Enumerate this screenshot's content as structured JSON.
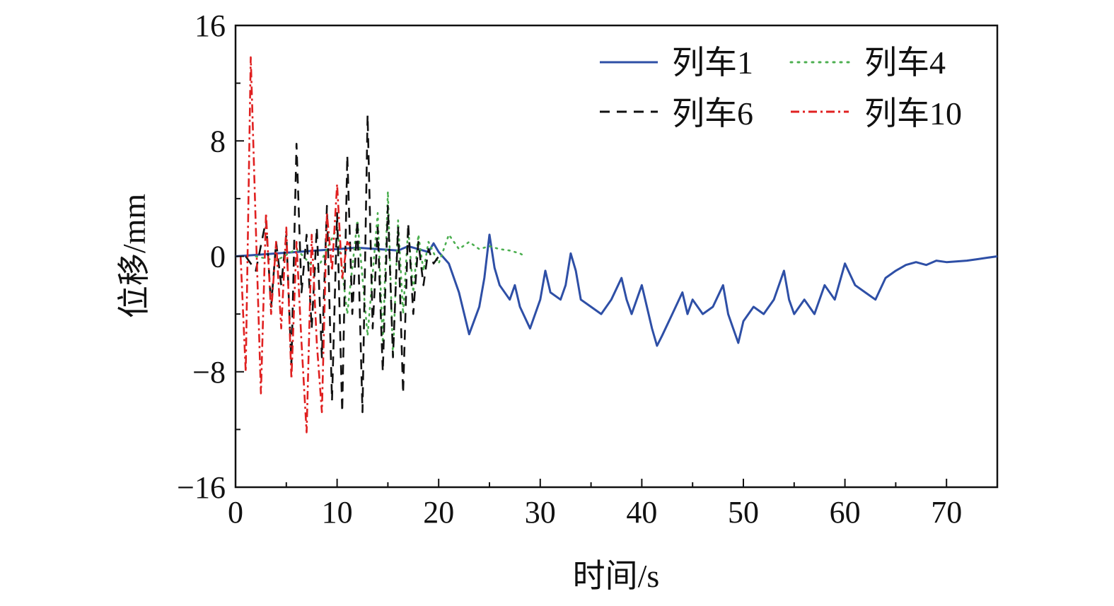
{
  "chart_data": {
    "type": "line",
    "title": "",
    "xlabel": "时间/s",
    "ylabel": "位移/mm",
    "xlim": [
      0,
      75
    ],
    "ylim": [
      -16,
      16
    ],
    "x_ticks": [
      0,
      10,
      20,
      30,
      40,
      50,
      60,
      70
    ],
    "y_ticks": [
      -16,
      -8,
      0,
      8,
      16
    ],
    "y_tick_labels": [
      "−16",
      "−8",
      "0",
      "8",
      "16"
    ],
    "grid": false,
    "legend_position": "top-right",
    "series": [
      {
        "name": "列车1",
        "color": "#2e4fa6",
        "dash": "solid",
        "points": [
          [
            0,
            0
          ],
          [
            2,
            0.1
          ],
          [
            4,
            0.2
          ],
          [
            6,
            0.3
          ],
          [
            8,
            0.4
          ],
          [
            10,
            0.5
          ],
          [
            12,
            0.6
          ],
          [
            14,
            0.5
          ],
          [
            16,
            0.4
          ],
          [
            17,
            0.7
          ],
          [
            18,
            0.5
          ],
          [
            19,
            0.3
          ],
          [
            19.5,
            0.9
          ],
          [
            20,
            0.3
          ],
          [
            21,
            -0.5
          ],
          [
            22,
            -2.5
          ],
          [
            23,
            -5.4
          ],
          [
            24,
            -3.5
          ],
          [
            24.5,
            -1.5
          ],
          [
            25,
            1.5
          ],
          [
            25.5,
            -0.8
          ],
          [
            26,
            -2
          ],
          [
            27,
            -3
          ],
          [
            27.5,
            -2
          ],
          [
            28,
            -3.5
          ],
          [
            29,
            -5
          ],
          [
            30,
            -3
          ],
          [
            30.5,
            -1
          ],
          [
            31,
            -2.5
          ],
          [
            32,
            -3
          ],
          [
            32.5,
            -2
          ],
          [
            33,
            0.2
          ],
          [
            33.5,
            -1
          ],
          [
            34,
            -3
          ],
          [
            35,
            -3.5
          ],
          [
            36,
            -4
          ],
          [
            37,
            -3
          ],
          [
            38,
            -1.5
          ],
          [
            38.5,
            -3
          ],
          [
            39,
            -4
          ],
          [
            40,
            -2
          ],
          [
            40.5,
            -3.5
          ],
          [
            41,
            -5
          ],
          [
            41.5,
            -6.2
          ],
          [
            42,
            -5.5
          ],
          [
            43,
            -4
          ],
          [
            44,
            -2.5
          ],
          [
            44.5,
            -4
          ],
          [
            45,
            -3
          ],
          [
            46,
            -4
          ],
          [
            47,
            -3.5
          ],
          [
            48,
            -2
          ],
          [
            48.5,
            -4
          ],
          [
            49,
            -5
          ],
          [
            49.5,
            -6
          ],
          [
            50,
            -4.5
          ],
          [
            51,
            -3.5
          ],
          [
            52,
            -4
          ],
          [
            53,
            -3
          ],
          [
            54,
            -1
          ],
          [
            54.5,
            -3
          ],
          [
            55,
            -4
          ],
          [
            56,
            -3
          ],
          [
            57,
            -4
          ],
          [
            58,
            -2
          ],
          [
            59,
            -3
          ],
          [
            60,
            -0.5
          ],
          [
            61,
            -2
          ],
          [
            62,
            -2.5
          ],
          [
            63,
            -3
          ],
          [
            64,
            -1.5
          ],
          [
            65,
            -1
          ],
          [
            66,
            -0.6
          ],
          [
            67,
            -0.4
          ],
          [
            68,
            -0.6
          ],
          [
            69,
            -0.3
          ],
          [
            70,
            -0.4
          ],
          [
            72,
            -0.3
          ],
          [
            73,
            -0.2
          ],
          [
            74,
            -0.1
          ],
          [
            75,
            0
          ]
        ]
      },
      {
        "name": "列车4",
        "color": "#4caf50",
        "dash": "dotted",
        "points": [
          [
            2,
            0
          ],
          [
            4,
            -0.3
          ],
          [
            6,
            0.5
          ],
          [
            8,
            -1
          ],
          [
            10,
            2
          ],
          [
            11,
            -4
          ],
          [
            12,
            2.5
          ],
          [
            13,
            -5.5
          ],
          [
            14,
            3
          ],
          [
            14.5,
            -6
          ],
          [
            15,
            4.5
          ],
          [
            15.5,
            -7
          ],
          [
            16,
            2.5
          ],
          [
            16.5,
            -4
          ],
          [
            17,
            2
          ],
          [
            17.5,
            -2.5
          ],
          [
            18,
            1.5
          ],
          [
            18.5,
            -1
          ],
          [
            19,
            1
          ],
          [
            20,
            -0.5
          ],
          [
            21,
            1.5
          ],
          [
            22,
            0.5
          ],
          [
            23,
            1
          ],
          [
            24,
            0.5
          ],
          [
            25,
            0.7
          ],
          [
            26,
            0.5
          ],
          [
            27,
            0.4
          ],
          [
            28,
            0.2
          ],
          [
            28.5,
            0
          ]
        ]
      },
      {
        "name": "列车6",
        "color": "#111111",
        "dash": "dashed",
        "points": [
          [
            1,
            0
          ],
          [
            2,
            -1
          ],
          [
            3,
            2.5
          ],
          [
            3.5,
            -3.5
          ],
          [
            4,
            1
          ],
          [
            4.5,
            -2
          ],
          [
            5,
            1.5
          ],
          [
            5.5,
            -7.5
          ],
          [
            6,
            7.8
          ],
          [
            6.5,
            -2.5
          ],
          [
            7,
            1.5
          ],
          [
            7.5,
            -5
          ],
          [
            8,
            2
          ],
          [
            8.5,
            -7
          ],
          [
            9,
            3.5
          ],
          [
            9.5,
            -10
          ],
          [
            10,
            3
          ],
          [
            10.5,
            -10.8
          ],
          [
            11,
            7
          ],
          [
            11.5,
            -4
          ],
          [
            12,
            2.5
          ],
          [
            12.5,
            -10.8
          ],
          [
            13,
            9.8
          ],
          [
            13.5,
            -5
          ],
          [
            14,
            2
          ],
          [
            14.5,
            -8
          ],
          [
            15,
            3.5
          ],
          [
            15.5,
            -7
          ],
          [
            16,
            2
          ],
          [
            16.5,
            -9.5
          ],
          [
            17,
            2.3
          ],
          [
            17.5,
            -4
          ],
          [
            18,
            1
          ],
          [
            18.5,
            -2
          ],
          [
            19,
            0.5
          ],
          [
            19.5,
            -0.5
          ],
          [
            20,
            0
          ]
        ]
      },
      {
        "name": "列车10",
        "color": "#e02020",
        "dash": "dashdot",
        "points": [
          [
            0.5,
            0
          ],
          [
            1,
            -8
          ],
          [
            1.5,
            13.8
          ],
          [
            2,
            2
          ],
          [
            2.5,
            -9.5
          ],
          [
            3,
            3
          ],
          [
            3.5,
            -4
          ],
          [
            4,
            1
          ],
          [
            4.5,
            -5
          ],
          [
            5,
            2
          ],
          [
            5.5,
            -8.5
          ],
          [
            6,
            1
          ],
          [
            6.5,
            -6
          ],
          [
            7,
            -12.2
          ],
          [
            7.5,
            1.5
          ],
          [
            8,
            -6
          ],
          [
            8.5,
            -10.8
          ],
          [
            9,
            3
          ],
          [
            9.5,
            -1
          ],
          [
            10,
            5
          ],
          [
            10.5,
            -1.5
          ],
          [
            11,
            1
          ],
          [
            11.5,
            0.5
          ]
        ]
      }
    ]
  }
}
